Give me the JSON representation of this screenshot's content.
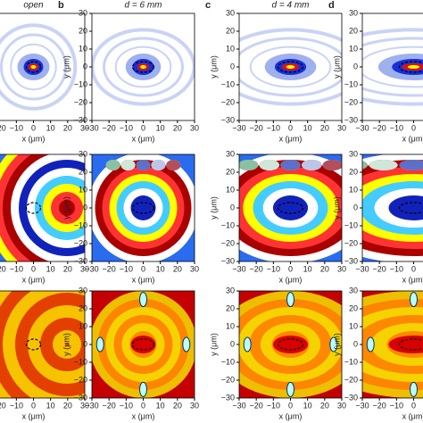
{
  "columns": [
    {
      "letter": null,
      "title": "open"
    },
    {
      "letter": "b",
      "title": "d = 6 mm"
    },
    {
      "letter": "c",
      "title": "d = 4 mm"
    },
    {
      "letter": "d",
      "title": null
    }
  ],
  "ticks": [
    "−30",
    "−20",
    "−10",
    "0",
    "10",
    "20",
    "30"
  ],
  "x_label": "x (μm)",
  "y_label": "y (μm)"
}
